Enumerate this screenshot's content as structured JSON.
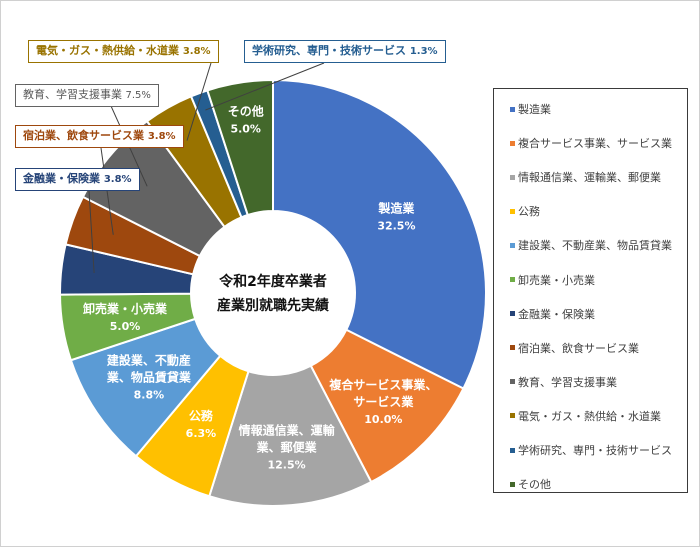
{
  "chart_data": {
    "type": "pie",
    "variant": "donut",
    "title_lines": [
      "令和2年度卒業者",
      "産業別就職先実績"
    ],
    "categories": [
      "製造業",
      "複合サービス事業、サービス業",
      "情報通信業、運輸業、郵便業",
      "公務",
      "建設業、不動産業、物品賃貸業",
      "卸売業・小売業",
      "金融業・保険業",
      "宿泊業、飲食サービス業",
      "教育、学習支援事業",
      "電気・ガス・熱供給・水道業",
      "学術研究、専門・技術サービス",
      "その他"
    ],
    "values": [
      32.5,
      10.0,
      12.5,
      6.3,
      8.8,
      5.0,
      3.8,
      3.8,
      7.5,
      3.8,
      1.3,
      5.0
    ],
    "value_labels": [
      "32.5%",
      "10.0%",
      "12.5%",
      "6.3%",
      "8.8%",
      "5.0%",
      "3.8%",
      "3.8%",
      "7.5%",
      "3.8%",
      "1.3%",
      "5.0%"
    ],
    "inner_labels": [
      [
        "製造業"
      ],
      [
        "複合サービス事業、",
        "サービス業"
      ],
      [
        "情報通信業、運輸",
        "業、郵便業"
      ],
      [
        "公務"
      ],
      [
        "建設業、不動産",
        "業、物品賃貸業"
      ],
      [
        "卸売業・小売業"
      ],
      null,
      null,
      null,
      null,
      null,
      [
        "その他"
      ]
    ],
    "callouts": [
      {
        "index": 6,
        "text": "金融業・保険業",
        "value": "3.8%"
      },
      {
        "index": 7,
        "text": "宿泊業、飲食サービス業",
        "value": "3.8%"
      },
      {
        "index": 8,
        "text": "教育、学習支援事業",
        "value": "7.5%"
      },
      {
        "index": 9,
        "text": "電気・ガス・熱供給・水道業",
        "value": "3.8%"
      },
      {
        "index": 10,
        "text": "学術研究、専門・技術サービス",
        "value": "1.3%"
      }
    ],
    "colors": [
      "#4472c4",
      "#ed7d31",
      "#a5a5a5",
      "#ffc000",
      "#5b9bd5",
      "#70ad47",
      "#264478",
      "#9e480e",
      "#636363",
      "#997300",
      "#255e91",
      "#43682b"
    ],
    "legend_position": "right",
    "start_angle_deg": 0,
    "direction": "clockwise"
  }
}
